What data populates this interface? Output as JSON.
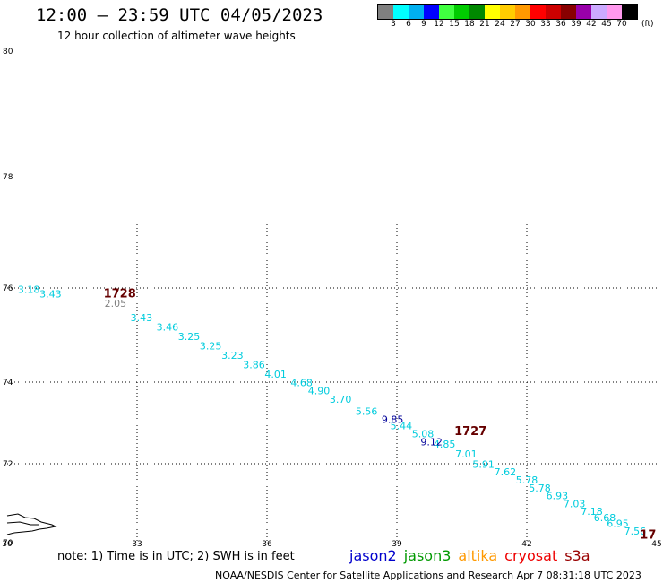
{
  "title": "12:00 – 23:59 UTC 04/05/2023",
  "subtitle": "12 hour collection of altimeter wave heights",
  "colorbar": {
    "labels": [
      "3",
      "6",
      "9",
      "12",
      "15",
      "18",
      "21",
      "24",
      "27",
      "30",
      "33",
      "36",
      "39",
      "42",
      "45",
      "70"
    ],
    "unit": "(ft)",
    "colors": [
      "#808080",
      "#00ffff",
      "#00b0f0",
      "#0000ff",
      "#40ff40",
      "#00cc00",
      "#008800",
      "#ffff00",
      "#ffcc00",
      "#ff9900",
      "#ff0000",
      "#cc0000",
      "#880000",
      "#9900aa",
      "#ccaaff",
      "#ff99ee",
      "#000000"
    ]
  },
  "axes": {
    "x_ticks": [
      "30",
      "33",
      "36",
      "39",
      "42",
      "45"
    ],
    "y_ticks": [
      "70",
      "72",
      "74",
      "76",
      "78",
      "80"
    ]
  },
  "track": {
    "color": "#00ccdd",
    "points": [
      {
        "lon": 30.5,
        "lat": 75.9,
        "v": "3.18"
      },
      {
        "lon": 31.0,
        "lat": 75.8,
        "v": "3.43"
      },
      {
        "lon": 33.1,
        "lat": 75.3,
        "v": "3.43"
      },
      {
        "lon": 33.7,
        "lat": 75.1,
        "v": "3.46"
      },
      {
        "lon": 34.2,
        "lat": 74.9,
        "v": "3.25"
      },
      {
        "lon": 34.7,
        "lat": 74.7,
        "v": "3.25"
      },
      {
        "lon": 35.2,
        "lat": 74.5,
        "v": "3.23"
      },
      {
        "lon": 35.7,
        "lat": 74.3,
        "v": "3.86"
      },
      {
        "lon": 36.2,
        "lat": 74.1,
        "v": "4.01"
      },
      {
        "lon": 36.8,
        "lat": 73.9,
        "v": "4.68"
      },
      {
        "lon": 37.2,
        "lat": 73.7,
        "v": "4.90"
      },
      {
        "lon": 37.7,
        "lat": 73.5,
        "v": "3.70"
      },
      {
        "lon": 38.3,
        "lat": 73.2,
        "v": "5.56"
      },
      {
        "lon": 39.1,
        "lat": 72.85,
        "v": "5.44"
      },
      {
        "lon": 39.6,
        "lat": 72.65,
        "v": "5.08"
      },
      {
        "lon": 40.1,
        "lat": 72.4,
        "v": "4.85"
      },
      {
        "lon": 40.6,
        "lat": 72.15,
        "v": "7.01"
      },
      {
        "lon": 41.0,
        "lat": 71.9,
        "v": "5.91"
      },
      {
        "lon": 41.5,
        "lat": 71.7,
        "v": "7.62"
      },
      {
        "lon": 42.0,
        "lat": 71.5,
        "v": "5.78"
      },
      {
        "lon": 42.3,
        "lat": 71.3,
        "v": "5.78"
      },
      {
        "lon": 42.7,
        "lat": 71.1,
        "v": "6.93"
      },
      {
        "lon": 43.1,
        "lat": 70.9,
        "v": "7.03"
      },
      {
        "lon": 43.5,
        "lat": 70.7,
        "v": "7.18"
      },
      {
        "lon": 43.8,
        "lat": 70.55,
        "v": "6.68"
      },
      {
        "lon": 44.1,
        "lat": 70.4,
        "v": "6.95"
      },
      {
        "lon": 44.5,
        "lat": 70.2,
        "v": "7.56"
      }
    ]
  },
  "extra_values": [
    {
      "lon": 32.5,
      "lat": 75.6,
      "v": "2.05",
      "color": "#808080"
    },
    {
      "lon": 38.9,
      "lat": 73.0,
      "v": "9.85",
      "color": "#000099"
    },
    {
      "lon": 39.8,
      "lat": 72.45,
      "v": "9.12",
      "color": "#000099"
    }
  ],
  "times": [
    {
      "lon": 32.6,
      "lat": 75.8,
      "v": "1728",
      "color": "#660000"
    },
    {
      "lon": 40.7,
      "lat": 72.7,
      "v": "1727",
      "color": "#660000"
    },
    {
      "lon": 44.8,
      "lat": 70.1,
      "v": "17",
      "color": "#660000"
    }
  ],
  "note": "note: 1) Time is in UTC; 2) SWH is in feet",
  "legend": [
    {
      "name": "jason2",
      "color": "#0000cc"
    },
    {
      "name": "jason3",
      "color": "#009900"
    },
    {
      "name": "altika",
      "color": "#ff9900"
    },
    {
      "name": "cryosat",
      "color": "#ee0000"
    },
    {
      "name": "s3a",
      "color": "#990000"
    }
  ],
  "credit": "NOAA/NESDIS Center for Satellite Applications and Research   Apr  7 08:31:18 UTC 2023"
}
